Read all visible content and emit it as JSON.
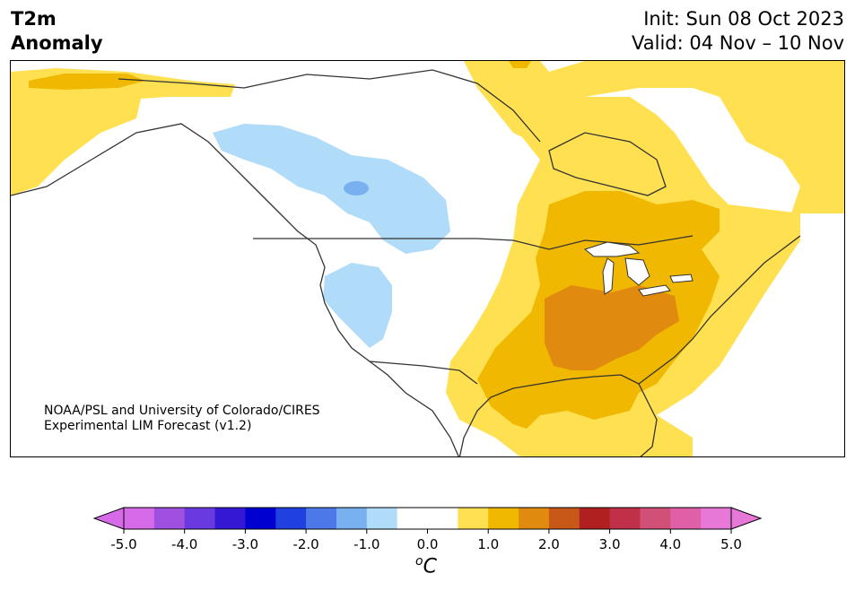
{
  "header": {
    "title_line1": "T2m",
    "title_line2": "Anomaly",
    "init": "Init: Sun 08 Oct 2023",
    "valid": "Valid: 04 Nov – 10 Nov"
  },
  "map": {
    "region": "North America",
    "credit_line1": "NOAA/PSL and University of Colorado/CIRES",
    "credit_line2": "Experimental LIM Forecast (v1.2)"
  },
  "colorbar": {
    "unit_base": "C",
    "unit_sup": "o",
    "tick_labels": [
      "-5.0",
      "-4.0",
      "-3.0",
      "-2.0",
      "-1.0",
      "0.0",
      "1.0",
      "2.0",
      "3.0",
      "4.0",
      "5.0"
    ],
    "colors": [
      "#d66ae8",
      "#a050e0",
      "#6a3ae0",
      "#3418d4",
      "#0000d0",
      "#2040e0",
      "#4d78e8",
      "#78b0f0",
      "#b0dcfa",
      "#ffffff",
      "#ffffff",
      "#ffe050",
      "#f0b800",
      "#e08a10",
      "#c85818",
      "#b02020",
      "#c03048",
      "#d05078",
      "#e060a8",
      "#e878d8"
    ],
    "low_extend_color": "#d66ae8",
    "high_extend_color": "#e878d8"
  }
}
